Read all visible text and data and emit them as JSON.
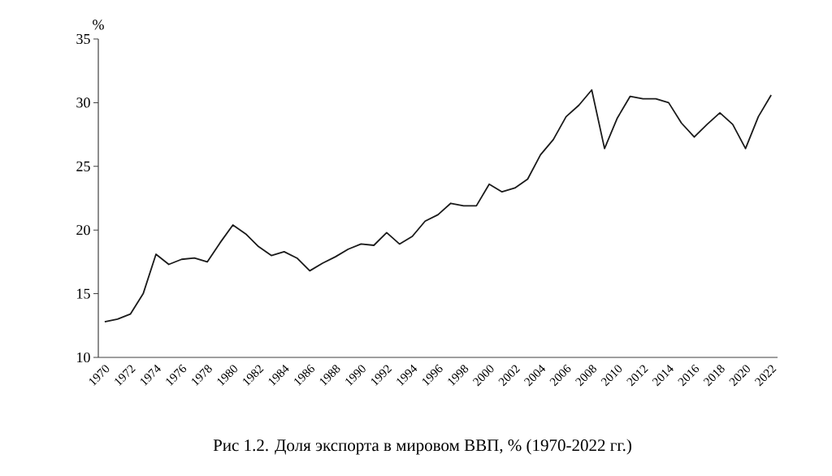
{
  "chart_data": {
    "type": "line",
    "title": "Рис 1.2. Доля экспорта в мировом ВВП, % (1970-2022 гг.)",
    "ylabel": "%",
    "categories": [
      "1970",
      null,
      "1972",
      null,
      "1974",
      null,
      "1976",
      null,
      "1978",
      null,
      "1980",
      null,
      "1982",
      null,
      "1984",
      null,
      "1986",
      null,
      "1988",
      null,
      "1990",
      null,
      "1992",
      null,
      "1994",
      null,
      "1996",
      null,
      "1998",
      null,
      "2000",
      null,
      "2002",
      null,
      "2004",
      null,
      "2006",
      null,
      "2008",
      null,
      "2010",
      null,
      "2012",
      null,
      "2014",
      null,
      "2016",
      null,
      "2018",
      null,
      "2020",
      null,
      "2022"
    ],
    "values": [
      12.8,
      13.0,
      13.4,
      15.0,
      18.1,
      17.3,
      17.7,
      17.8,
      17.5,
      19.0,
      20.4,
      19.7,
      18.7,
      18.0,
      18.3,
      17.8,
      16.8,
      17.4,
      17.9,
      18.5,
      18.9,
      18.8,
      19.8,
      18.9,
      19.5,
      20.7,
      21.2,
      22.1,
      21.9,
      21.9,
      23.6,
      23.0,
      23.3,
      24.0,
      25.9,
      27.1,
      28.9,
      29.8,
      31.0,
      26.4,
      28.8,
      30.5,
      30.3,
      30.3,
      30.0,
      28.4,
      27.3,
      28.3,
      29.2,
      28.3,
      26.4,
      28.9,
      30.6
    ],
    "color": "#1a1a1a",
    "ylim": [
      10,
      35
    ],
    "yticks": [
      10,
      15,
      20,
      25,
      30,
      35
    ]
  }
}
